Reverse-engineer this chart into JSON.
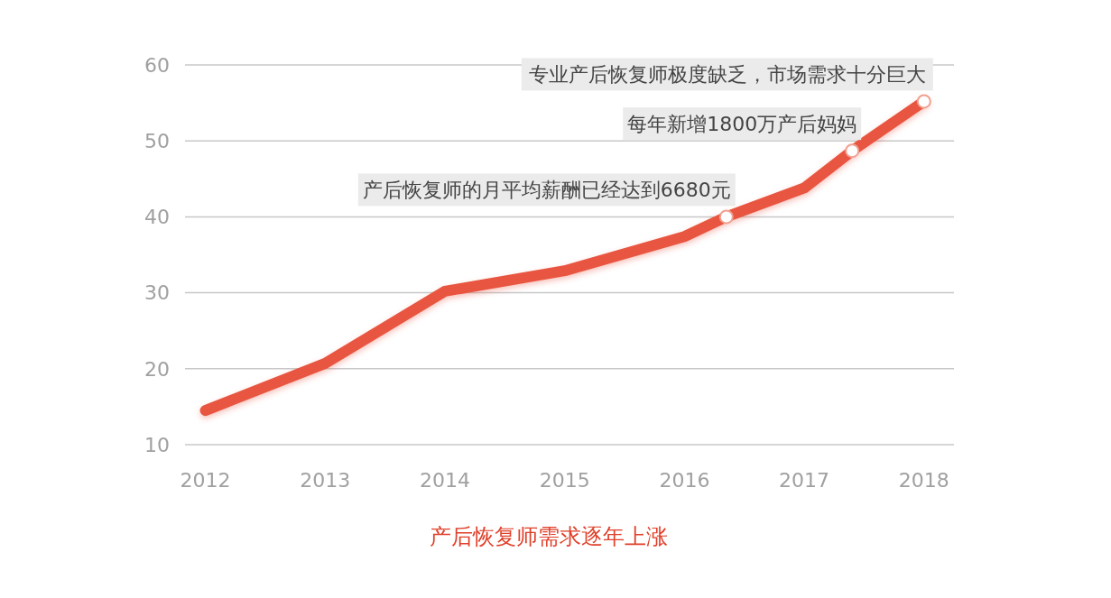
{
  "chart_data": {
    "type": "line",
    "title": "产后恢复师需求逐年上涨",
    "x": [
      2012,
      2013,
      2014,
      2015,
      2016,
      2016.35,
      2017,
      2017.4,
      2018
    ],
    "series": [
      {
        "color": "#e8553f",
        "values": [
          14.5,
          20.7,
          30.2,
          32.9,
          37.4,
          40,
          43.8,
          48.7,
          55.2
        ]
      }
    ],
    "xlim": [
      2011.83,
      2018.25
    ],
    "xticks": [
      2012,
      2013,
      2014,
      2015,
      2016,
      2017,
      2018
    ],
    "ylim": [
      10,
      60
    ],
    "yticks": [
      10,
      20,
      30,
      40,
      50,
      60
    ],
    "grid": "y",
    "marker": "none",
    "line_style": "solid",
    "annotations": [
      {
        "text": "专业产后恢复师极度缺乏，市场需求十分巨大",
        "x": 2018,
        "y": 55.2
      },
      {
        "text": "每年新增1800万产后妈妈",
        "x": 2017.4,
        "y": 48.7
      },
      {
        "text": "产后恢复师的月平均薪酬已经达到6680元",
        "x": 2016.35,
        "y": 40
      }
    ]
  }
}
